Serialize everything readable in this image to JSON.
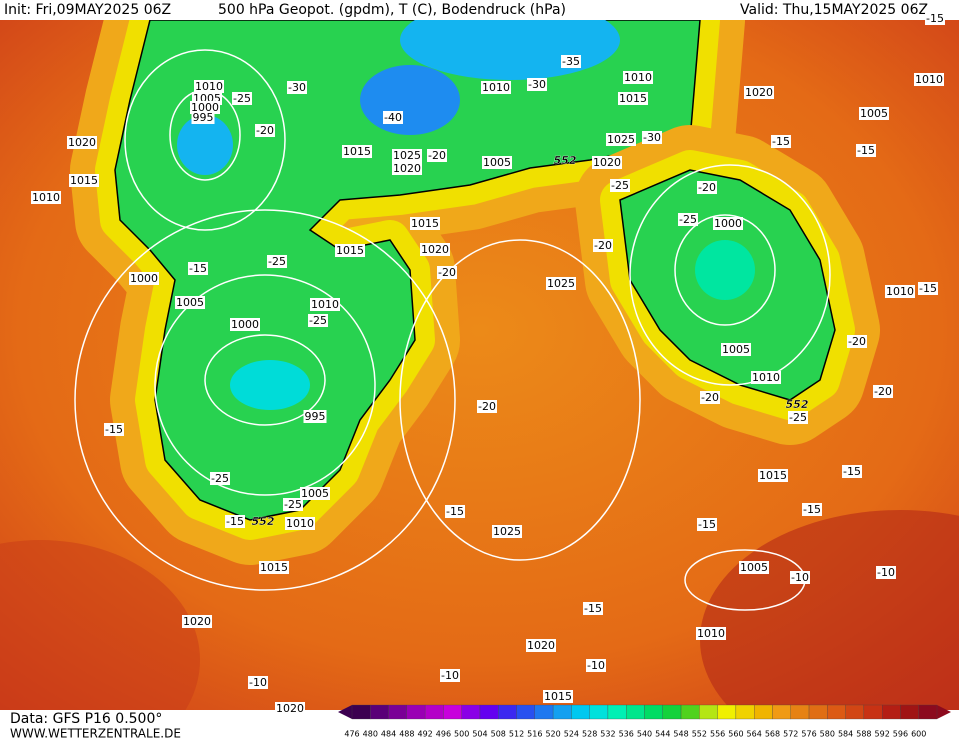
{
  "header": {
    "init": "Init: Fri,09MAY2025 06Z",
    "title": "500 hPa Geopot. (gpdm), T (C), Bodendruck (hPa)",
    "valid": "Valid: Thu,15MAY2025 06Z"
  },
  "footer": {
    "data_source": "Data: GFS P16 0.500°",
    "website": "WWW.WETTERZENTRALE.DE"
  },
  "map": {
    "isobar_labels": [
      1010,
      1005,
      1000,
      995,
      1020,
      1015,
      1010,
      1000,
      1005,
      1000,
      1010,
      995,
      1005,
      1010,
      1015,
      1020,
      1015,
      1025,
      1020,
      1015,
      1015,
      1020,
      1010,
      1005,
      1010,
      1015,
      1020,
      1025,
      1020,
      1010,
      1005,
      1000,
      1025,
      1005,
      1010,
      1010,
      1015,
      1025,
      1005,
      1010,
      1020,
      1015,
      1020
    ],
    "temperature_labels": [
      -25,
      -30,
      -20,
      -40,
      -30,
      -35,
      -15,
      -20,
      -30,
      -25,
      -20,
      -15,
      -15,
      -25,
      -20,
      -15,
      -25,
      -20,
      -25,
      -20,
      -15,
      -20,
      -25,
      -20,
      -20,
      -15,
      -15,
      -15,
      -15,
      -15,
      -25,
      -25,
      -15,
      -10,
      -10,
      -15,
      -10,
      -10,
      -10
    ],
    "height_labels": [
      552,
      552,
      552
    ]
  },
  "legend": {
    "values": [
      476,
      480,
      484,
      488,
      492,
      496,
      500,
      504,
      508,
      512,
      516,
      520,
      524,
      528,
      532,
      536,
      540,
      544,
      548,
      552,
      556,
      560,
      564,
      568,
      572,
      576,
      580,
      584,
      588,
      592,
      596,
      600
    ],
    "colors": [
      "#3c0050",
      "#5a0078",
      "#7a0096",
      "#9a00b4",
      "#b400c8",
      "#c800dc",
      "#8a00e6",
      "#6400f0",
      "#3c28f0",
      "#2850f0",
      "#1e78f0",
      "#14a0f0",
      "#00c8f0",
      "#00e1dc",
      "#00f0b4",
      "#00e68c",
      "#00dc64",
      "#14d23c",
      "#50d21e",
      "#b4e614",
      "#f0f000",
      "#f0d200",
      "#f0b400",
      "#f09a14",
      "#e68214",
      "#e06e14",
      "#dc5a14",
      "#d24614",
      "#c83214",
      "#b41e14",
      "#a01414",
      "#8c0a1e"
    ]
  }
}
